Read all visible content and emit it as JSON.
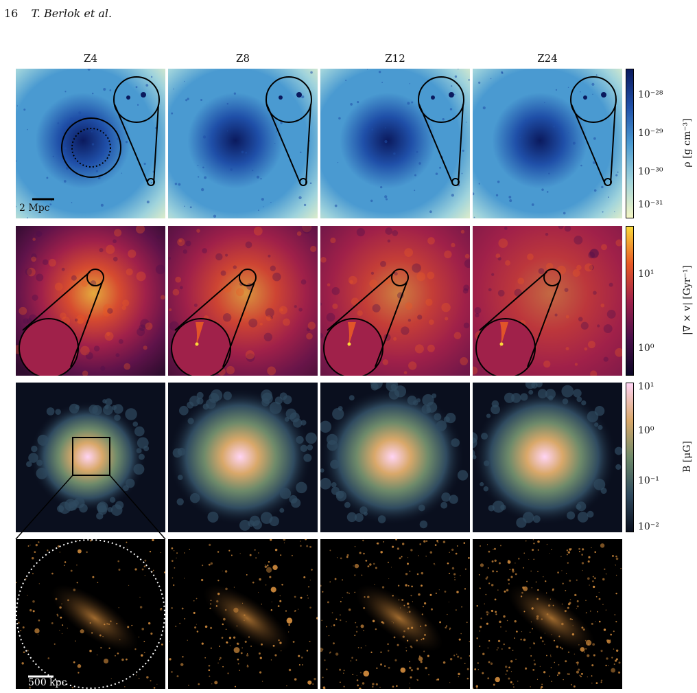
{
  "header": {
    "page_number": "16",
    "authors": "T. Berlok et al."
  },
  "columns": [
    "Z4",
    "Z8",
    "Z12",
    "Z24"
  ],
  "rows": [
    {
      "name": "density",
      "colorbar_label": "ρ  [g cm⁻³]",
      "ticks": [
        "10⁻²⁸",
        "10⁻²⁹",
        "10⁻³⁰",
        "10⁻³¹"
      ],
      "colormap": [
        "#0b1a5e",
        "#1f4fa8",
        "#4a9ad1",
        "#9fd3dc",
        "#f4f6c4"
      ]
    },
    {
      "name": "vorticity",
      "colorbar_label": "|∇ × v|  [Gyr⁻¹]",
      "ticks": [
        "10¹",
        "10⁰"
      ],
      "colormap": [
        "#0a0625",
        "#4a0f4a",
        "#a0214a",
        "#e85a26",
        "#fbd93a"
      ]
    },
    {
      "name": "magnetic",
      "colorbar_label": "B  [μG]",
      "ticks": [
        "10¹",
        "10⁰",
        "10⁻¹",
        "10⁻²"
      ],
      "colormap": [
        "#0a0f1e",
        "#2f4a5f",
        "#6e8a6a",
        "#d9a86a",
        "#ffd4f4"
      ]
    },
    {
      "name": "stars",
      "colorbar_label": "",
      "ticks": [],
      "colormap": [
        "#000000",
        "#3a2412",
        "#c8853a"
      ]
    }
  ],
  "scalebars": {
    "top": "2 Mpc",
    "bottom": "500 kpc"
  }
}
